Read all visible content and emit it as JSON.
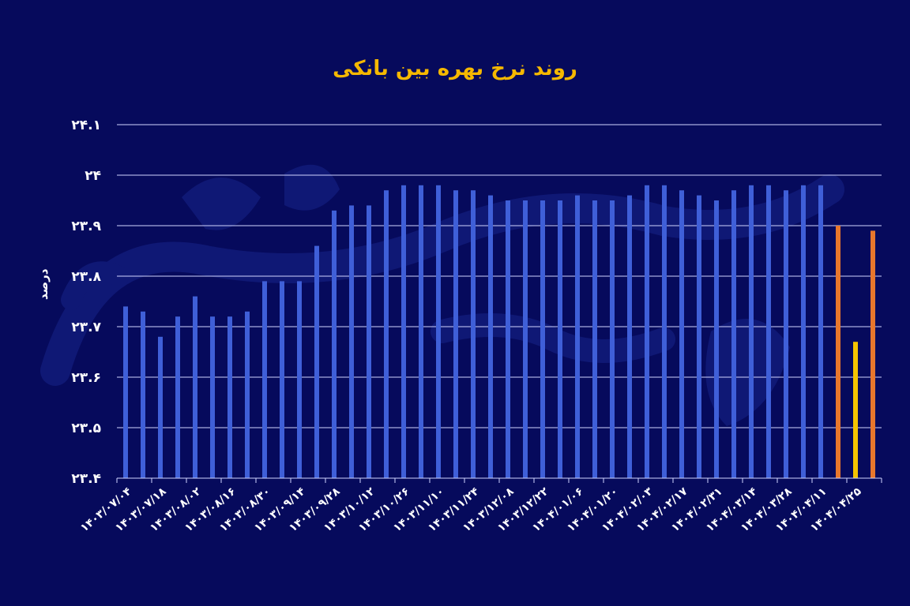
{
  "chart_data": {
    "type": "bar",
    "title": "روند نرخ بهره بین بانکی",
    "xlabel": "",
    "ylabel": "درصد",
    "ylim": [
      23.4,
      24.1
    ],
    "yticks": [
      "۲۴.۱",
      "۲۴",
      "۲۳.۹",
      "۲۳.۸",
      "۲۳.۷",
      "۲۳.۶",
      "۲۳.۵",
      "۲۳.۴"
    ],
    "ytick_values": [
      24.1,
      24.0,
      23.9,
      23.8,
      23.7,
      23.6,
      23.5,
      23.4
    ],
    "grid": true,
    "legend": "none",
    "x_tick_labels": [
      "۱۴۰۳/۰۷/۰۴",
      "۱۴۰۳/۰۷/۱۸",
      "۱۴۰۳/۰۸/۰۲",
      "۱۴۰۳/۰۸/۱۶",
      "۱۴۰۳/۰۸/۳۰",
      "۱۴۰۳/۰۹/۱۴",
      "۱۴۰۳/۰۹/۲۸",
      "۱۴۰۳/۱۰/۱۲",
      "۱۴۰۳/۱۰/۲۶",
      "۱۴۰۳/۱۱/۱۰",
      "۱۴۰۳/۱۱/۲۴",
      "۱۴۰۳/۱۲/۰۸",
      "۱۴۰۳/۱۲/۲۲",
      "۱۴۰۴/۰۱/۰۶",
      "۱۴۰۴/۰۱/۲۰",
      "۱۴۰۴/۰۲/۰۳",
      "۱۴۰۴/۰۲/۱۷",
      "۱۴۰۴/۰۲/۳۱",
      "۱۴۰۴/۰۳/۱۴",
      "۱۴۰۴/۰۳/۲۸",
      "۱۴۰۴/۰۴/۱۱",
      "۱۴۰۴/۰۴/۲۵"
    ],
    "values": [
      23.74,
      23.73,
      23.68,
      23.72,
      23.76,
      23.72,
      23.72,
      23.73,
      23.79,
      23.79,
      23.79,
      23.86,
      23.93,
      23.94,
      23.94,
      23.97,
      23.98,
      23.98,
      23.98,
      23.97,
      23.97,
      23.96,
      23.95,
      23.95,
      23.95,
      23.95,
      23.96,
      23.95,
      23.95,
      23.96,
      23.98,
      23.98,
      23.97,
      23.96,
      23.95,
      23.97,
      23.98,
      23.98,
      23.97,
      23.98,
      23.98,
      23.9,
      23.67,
      23.89
    ],
    "bar_colors": [
      "#3f5fd8",
      "#3f5fd8",
      "#3f5fd8",
      "#3f5fd8",
      "#3f5fd8",
      "#3f5fd8",
      "#3f5fd8",
      "#3f5fd8",
      "#3f5fd8",
      "#3f5fd8",
      "#3f5fd8",
      "#3f5fd8",
      "#3f5fd8",
      "#3f5fd8",
      "#3f5fd8",
      "#3f5fd8",
      "#3f5fd8",
      "#3f5fd8",
      "#3f5fd8",
      "#3f5fd8",
      "#3f5fd8",
      "#3f5fd8",
      "#3f5fd8",
      "#3f5fd8",
      "#3f5fd8",
      "#3f5fd8",
      "#3f5fd8",
      "#3f5fd8",
      "#3f5fd8",
      "#3f5fd8",
      "#3f5fd8",
      "#3f5fd8",
      "#3f5fd8",
      "#3f5fd8",
      "#3f5fd8",
      "#3f5fd8",
      "#3f5fd8",
      "#3f5fd8",
      "#3f5fd8",
      "#3f5fd8",
      "#3f5fd8",
      "#e8772c",
      "#f5c400",
      "#e8772c"
    ]
  },
  "colors": {
    "background": "#060a5c",
    "title": "#f5b800",
    "text": "#ffffff",
    "gridline": "#d0d4ff",
    "bar": "#3f5fd8",
    "highlight_orange": "#e8772c",
    "highlight_yellow": "#f5c400",
    "watermark": "#111a78"
  }
}
